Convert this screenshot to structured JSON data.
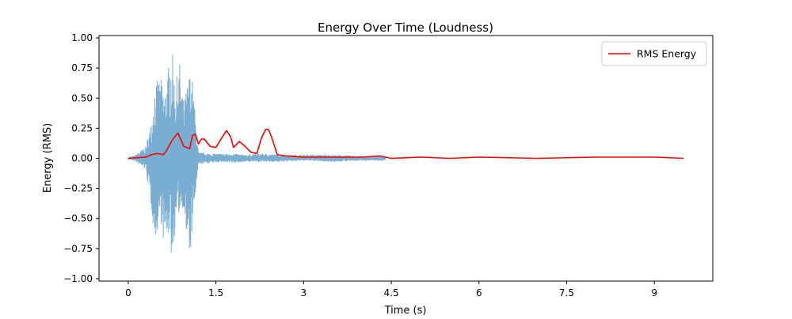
{
  "chart_data": {
    "type": "line",
    "title": "Energy Over Time (Loudness)",
    "xlabel": "Time (s)",
    "ylabel": "Energy (RMS)",
    "xlim": [
      -0.5,
      10.0
    ],
    "ylim": [
      -1.02,
      1.02
    ],
    "x_ticks": [
      0,
      1.5,
      3,
      4.5,
      6,
      7.5,
      9
    ],
    "x_tick_labels": [
      "0",
      "1.5",
      "3",
      "4.5",
      "6",
      "7.5",
      "9"
    ],
    "y_ticks": [
      1.0,
      0.75,
      0.5,
      0.25,
      0.0,
      -0.25,
      -0.5,
      -0.75,
      -1.0
    ],
    "y_tick_labels": [
      "1.00",
      "0.75",
      "0.50",
      "0.25",
      "0.00",
      "−0.25",
      "−0.50",
      "−0.75",
      "−1.00"
    ],
    "grid": false,
    "legend": {
      "position": "top-right",
      "entries": [
        "RMS Energy"
      ]
    },
    "series": [
      {
        "name": "",
        "kind": "waveform",
        "color": "#1f77b4",
        "x_range": [
          0,
          4.4
        ],
        "envelope": {
          "x": [
            0.0,
            0.1,
            0.2,
            0.3,
            0.4,
            0.45,
            0.55,
            0.62,
            0.7,
            0.75,
            0.8,
            0.88,
            0.95,
            1.0,
            1.05,
            1.1,
            1.2,
            1.4,
            1.6,
            1.8,
            2.0,
            2.3,
            2.6,
            3.0,
            3.5,
            4.0,
            4.4
          ],
          "upper": [
            0.01,
            0.02,
            0.06,
            0.1,
            0.32,
            0.62,
            0.68,
            0.55,
            0.8,
            0.92,
            0.6,
            0.8,
            0.45,
            0.6,
            0.72,
            0.65,
            0.05,
            0.04,
            0.04,
            0.04,
            0.03,
            0.04,
            0.03,
            0.03,
            0.03,
            0.02,
            0.02
          ],
          "lower": [
            -0.01,
            -0.02,
            -0.06,
            -0.1,
            -0.45,
            -0.7,
            -0.5,
            -0.78,
            -0.6,
            -0.93,
            -0.55,
            -0.45,
            -0.4,
            -0.75,
            -0.86,
            -0.55,
            -0.05,
            -0.04,
            -0.03,
            -0.04,
            -0.03,
            -0.03,
            -0.03,
            -0.02,
            -0.03,
            -0.02,
            -0.02
          ]
        }
      },
      {
        "name": "RMS Energy",
        "kind": "line",
        "color": "#ff0000",
        "x": [
          0.0,
          0.3,
          0.4,
          0.5,
          0.6,
          0.65,
          0.75,
          0.85,
          0.95,
          1.05,
          1.1,
          1.15,
          1.2,
          1.25,
          1.3,
          1.4,
          1.5,
          1.6,
          1.68,
          1.75,
          1.8,
          1.9,
          2.0,
          2.1,
          2.2,
          2.28,
          2.35,
          2.4,
          2.45,
          2.55,
          2.7,
          3.0,
          3.5,
          4.0,
          4.3,
          4.5,
          5.0,
          5.5,
          6.0,
          7.0,
          8.0,
          8.9,
          9.0,
          9.5
        ],
        "values": [
          0.0,
          0.01,
          0.03,
          0.04,
          0.03,
          0.06,
          0.15,
          0.21,
          0.1,
          0.08,
          0.19,
          0.2,
          0.12,
          0.16,
          0.16,
          0.1,
          0.09,
          0.17,
          0.23,
          0.18,
          0.09,
          0.14,
          0.1,
          0.05,
          0.04,
          0.17,
          0.24,
          0.24,
          0.18,
          0.03,
          0.02,
          0.01,
          0.01,
          0.01,
          0.02,
          0.0,
          0.01,
          0.0,
          0.01,
          0.0,
          0.01,
          0.01,
          0.01,
          0.0
        ]
      }
    ]
  }
}
